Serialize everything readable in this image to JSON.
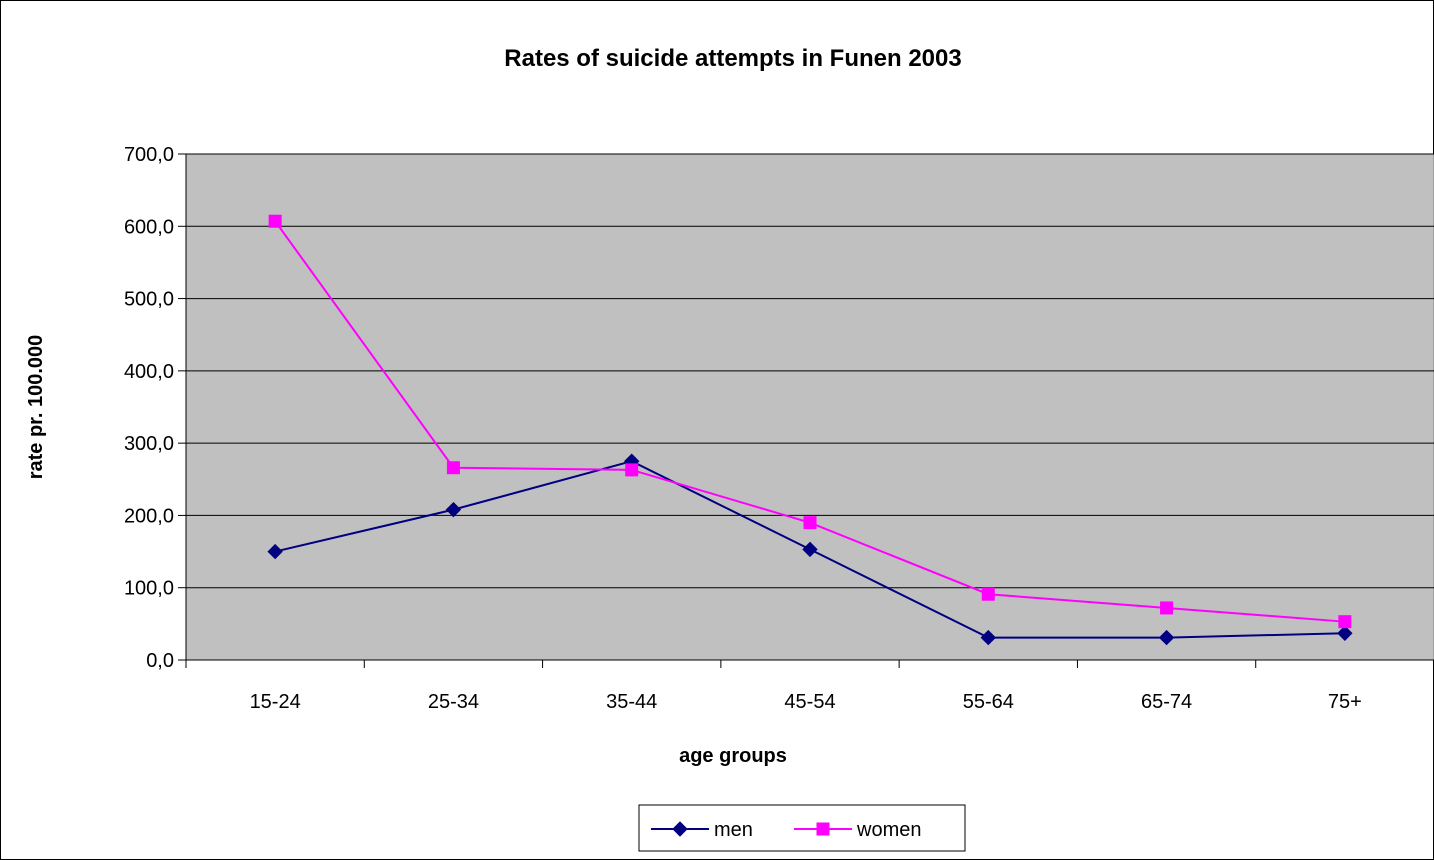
{
  "chart_data": {
    "type": "line",
    "title": "Rates of suicide attempts in Funen 2003",
    "xlabel": "age groups",
    "ylabel": "rate pr. 100.000",
    "categories": [
      "15-24",
      "25-34",
      "35-44",
      "45-54",
      "55-64",
      "65-74",
      "75+"
    ],
    "ylim": [
      0,
      700
    ],
    "ytick_labels": [
      "0,0",
      "100,0",
      "200,0",
      "300,0",
      "400,0",
      "500,0",
      "600,0",
      "700,0"
    ],
    "grid": true,
    "legend_position": "bottom",
    "plot_background": "#C0C0C0",
    "series": [
      {
        "name": "men",
        "values": [
          150,
          208,
          275,
          153,
          31,
          31,
          37
        ],
        "color": "#000080",
        "marker": "diamond"
      },
      {
        "name": "women",
        "values": [
          607,
          266,
          263,
          190,
          91,
          72,
          53
        ],
        "color": "#FF00FF",
        "marker": "square"
      }
    ]
  }
}
